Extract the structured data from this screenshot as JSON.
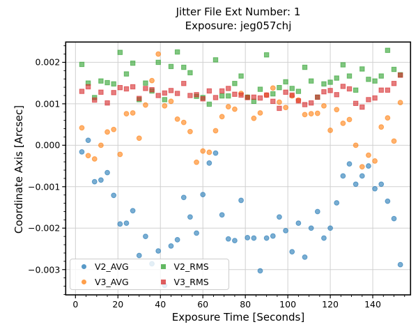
{
  "figure": {
    "title_line1": "Jitter File Ext Number: 1",
    "title_line2": "Exposure: jeg057chj",
    "xlabel": "Exposure Time [Seconds]",
    "ylabel": "Coordinate Axis [Arcsec]"
  },
  "legend": {
    "items": [
      {
        "label": "V2_AVG",
        "series": "V2_AVG"
      },
      {
        "label": "V3_AVG",
        "series": "V3_AVG"
      },
      {
        "label": "V2_RMS",
        "series": "V2_RMS"
      },
      {
        "label": "V3_RMS",
        "series": "V3_RMS"
      }
    ]
  },
  "chart_data": {
    "type": "scatter",
    "title": "Jitter File Ext Number: 1\nExposure: jeg057chj",
    "xlabel": "Exposure Time [Seconds]",
    "ylabel": "Coordinate Axis [Arcsec]",
    "grid": true,
    "legend_position": "lower left",
    "xlim": [
      -4.6,
      157.8
    ],
    "ylim": [
      -0.00361,
      0.00249
    ],
    "x_ticks": {
      "values": [
        0,
        20,
        40,
        60,
        80,
        100,
        120,
        140
      ],
      "labels": [
        "0",
        "20",
        "40",
        "60",
        "80",
        "100",
        "120",
        "140"
      ]
    },
    "y_ticks": {
      "values": [
        -0.003,
        -0.002,
        -0.001,
        0.0,
        0.001,
        0.002
      ],
      "labels": [
        "−0.003",
        "−0.002",
        "−0.001",
        "0.000",
        "0.001",
        "0.002"
      ]
    },
    "x_minor_step": 5,
    "y_minor_step": 0.0002,
    "x": [
      3,
      6,
      9,
      12,
      15,
      18,
      21,
      24,
      27,
      30,
      33,
      36,
      39,
      42,
      45,
      48,
      51,
      54,
      57,
      60,
      63,
      66,
      69,
      72,
      75,
      78,
      81,
      84,
      87,
      90,
      93,
      96,
      99,
      102,
      105,
      108,
      111,
      114,
      117,
      120,
      123,
      126,
      129,
      132,
      135,
      138,
      141,
      144,
      147,
      150,
      153
    ],
    "series": [
      {
        "name": "V2_AVG",
        "marker": "circle",
        "color": "#1f77b4",
        "alpha": 0.6,
        "values": [
          -0.00016,
          0.00012,
          -0.00088,
          -0.00084,
          -0.00066,
          -0.00121,
          -0.0019,
          -0.00188,
          -0.00158,
          -0.00266,
          -0.0022,
          -0.00286,
          -0.00255,
          -0.00338,
          -0.00243,
          -0.00228,
          -0.00126,
          -0.00173,
          -0.00212,
          -0.00119,
          -0.00043,
          -0.00019,
          -0.00168,
          -0.00226,
          -0.0023,
          -0.00133,
          -0.00223,
          -0.00224,
          -0.00303,
          -0.00224,
          -0.00219,
          -0.00173,
          -0.00206,
          -0.00257,
          -0.00188,
          -0.0027,
          -0.002,
          -0.0016,
          -0.00224,
          -0.002,
          -0.00139,
          -0.00074,
          -0.00045,
          -0.00094,
          -0.00074,
          -0.0005,
          -0.00105,
          -0.00094,
          -0.00135,
          -0.00177,
          -0.00288
        ]
      },
      {
        "name": "V3_AVG",
        "marker": "circle",
        "color": "#ff7f0e",
        "alpha": 0.6,
        "values": [
          0.00042,
          -0.00025,
          -0.00033,
          0.0,
          0.00032,
          0.00038,
          -0.00022,
          0.00076,
          0.00078,
          0.00017,
          0.00097,
          0.00156,
          0.0022,
          0.00095,
          0.00106,
          0.00063,
          0.00055,
          0.00033,
          -0.00041,
          -0.00014,
          -0.00017,
          0.00035,
          0.00069,
          0.00093,
          0.00087,
          0.00125,
          0.00116,
          0.00065,
          0.00078,
          0.00121,
          0.00138,
          0.00104,
          0.00091,
          0.00119,
          0.00109,
          0.00074,
          0.00076,
          0.00077,
          0.00095,
          0.00036,
          0.00086,
          0.00053,
          0.00062,
          0.0,
          -0.00052,
          -0.00024,
          -0.00038,
          0.00044,
          0.00066,
          0.0001,
          0.00103
        ]
      },
      {
        "name": "V2_RMS",
        "marker": "square",
        "color": "#2ca02c",
        "alpha": 0.6,
        "values": [
          0.00195,
          0.0015,
          0.00115,
          0.00155,
          0.00151,
          0.00148,
          0.00224,
          0.00172,
          0.00198,
          0.0011,
          0.0015,
          0.00131,
          0.002,
          0.0011,
          0.0019,
          0.00225,
          0.00188,
          0.00175,
          0.00118,
          0.00115,
          0.00099,
          0.00206,
          0.00119,
          0.00119,
          0.00149,
          0.00167,
          0.00116,
          0.00106,
          0.00135,
          0.00218,
          0.00124,
          0.00139,
          0.00153,
          0.00137,
          0.0013,
          0.00188,
          0.00155,
          0.00116,
          0.00148,
          0.00152,
          0.00162,
          0.00194,
          0.00167,
          0.00133,
          0.00184,
          0.00159,
          0.00155,
          0.00167,
          0.00229,
          0.00183,
          0.0017
        ]
      },
      {
        "name": "V3_RMS",
        "marker": "square",
        "color": "#d62728",
        "alpha": 0.6,
        "values": [
          0.0013,
          0.00141,
          0.00109,
          0.00128,
          0.00102,
          0.00127,
          0.00139,
          0.00136,
          0.00141,
          0.00113,
          0.00137,
          0.00134,
          0.0012,
          0.00126,
          0.00132,
          0.00125,
          0.00149,
          0.0012,
          0.00122,
          0.00112,
          0.00131,
          0.00115,
          0.00131,
          0.00137,
          0.00123,
          0.00121,
          0.00115,
          0.00116,
          0.00114,
          0.00121,
          0.00106,
          0.00089,
          0.00128,
          0.00121,
          0.00107,
          0.00098,
          0.00102,
          0.00116,
          0.00129,
          0.00132,
          0.00122,
          0.00142,
          0.00136,
          0.00101,
          0.00092,
          0.0011,
          0.00114,
          0.00133,
          0.00133,
          0.00149,
          0.00169
        ]
      }
    ]
  }
}
